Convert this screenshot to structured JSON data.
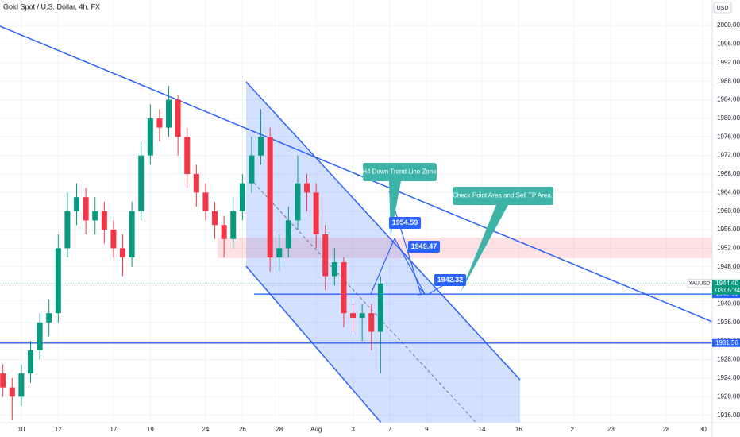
{
  "chart_data": {
    "type": "candlestick",
    "title": "Gold Spot / U.S. Dollar, 4h, FX",
    "currency": "USD",
    "up_color": "#089981",
    "down_color": "#f23645",
    "x": [
      -1,
      -0.5,
      0,
      0.5,
      1,
      1.5,
      2,
      2.5,
      3,
      3.5,
      4,
      4.5,
      5,
      5.5,
      6,
      6.5,
      7,
      7.5,
      8,
      8.5,
      9,
      9.5,
      10,
      10.5,
      11,
      11.5,
      12,
      12.5,
      13,
      13.5,
      14,
      14.5,
      15,
      15.5,
      16,
      16.5,
      17,
      17.5,
      18,
      18.5,
      19,
      19.5
    ],
    "open": [
      1925,
      1922,
      1920,
      1925,
      1930,
      1936,
      1938,
      1952,
      1960,
      1963,
      1958,
      1960,
      1956,
      1952,
      1950,
      1960,
      1972,
      1980,
      1978,
      1984,
      1976,
      1968,
      1964,
      1960,
      1957,
      1954,
      1960,
      1966,
      1972,
      1976,
      1950,
      1952,
      1958,
      1966,
      1964,
      1955,
      1946,
      1949,
      1938,
      1937,
      1938,
      1934
    ],
    "high": [
      1927,
      1924,
      1927,
      1932,
      1938,
      1941,
      1955,
      1964,
      1966,
      1965,
      1963,
      1962,
      1958,
      1955,
      1962,
      1975,
      1983,
      1982,
      1987,
      1985,
      1978,
      1970,
      1966,
      1962,
      1959,
      1963,
      1968,
      1976,
      1982,
      1978,
      1955,
      1961,
      1972,
      1968,
      1966,
      1957,
      1952,
      1950,
      1940,
      1940,
      1940,
      1946
    ],
    "low": [
      1920,
      1915,
      1918,
      1923,
      1928,
      1933,
      1936,
      1950,
      1957,
      1955,
      1955,
      1953,
      1950,
      1946,
      1948,
      1958,
      1970,
      1975,
      1976,
      1972,
      1965,
      1961,
      1958,
      1954,
      1950,
      1952,
      1958,
      1964,
      1970,
      1947,
      1947,
      1950,
      1956,
      1960,
      1952,
      1943,
      1944,
      1935,
      1934,
      1932,
      1930,
      1925
    ],
    "close": [
      1922,
      1920,
      1925,
      1930,
      1936,
      1938,
      1952,
      1960,
      1963,
      1958,
      1960,
      1956,
      1952,
      1950,
      1960,
      1972,
      1980,
      1978,
      1984,
      1976,
      1968,
      1964,
      1960,
      1957,
      1954,
      1960,
      1966,
      1972,
      1976,
      1950,
      1952,
      1958,
      1966,
      1964,
      1955,
      1946,
      1949,
      1938,
      1937,
      1938,
      1934,
      1944.4
    ],
    "xlim": [
      -1.16,
      37.5
    ],
    "xticks": [
      {
        "value": 0,
        "label": "10"
      },
      {
        "value": 2,
        "label": "12"
      },
      {
        "value": 5,
        "label": "17"
      },
      {
        "value": 7,
        "label": "19"
      },
      {
        "value": 10,
        "label": "24"
      },
      {
        "value": 12,
        "label": "26"
      },
      {
        "value": 14,
        "label": "28"
      },
      {
        "value": 16,
        "label": "Aug"
      },
      {
        "value": 18,
        "label": "3"
      },
      {
        "value": 20,
        "label": "7"
      },
      {
        "value": 22,
        "label": "9"
      },
      {
        "value": 25,
        "label": "14"
      },
      {
        "value": 27,
        "label": "16"
      },
      {
        "value": 30,
        "label": "21"
      },
      {
        "value": 32,
        "label": "23"
      },
      {
        "value": 35,
        "label": "28"
      },
      {
        "value": 37,
        "label": "30"
      }
    ],
    "ylim": [
      1914.4,
      2005.5
    ],
    "yticks": [
      {
        "value": 1916,
        "label": "1916.00"
      },
      {
        "value": 1920,
        "label": "1920.00"
      },
      {
        "value": 1924,
        "label": "1924.00"
      },
      {
        "value": 1928,
        "label": "1928.00"
      },
      {
        "value": 1932,
        "label": "1932.00"
      },
      {
        "value": 1936,
        "label": "1936.00"
      },
      {
        "value": 1940,
        "label": "1940.00"
      },
      {
        "value": 1944,
        "label": "1944.00"
      },
      {
        "value": 1948,
        "label": "1948.00"
      },
      {
        "value": 1952,
        "label": "1952.00"
      },
      {
        "value": 1956,
        "label": "1956.00"
      },
      {
        "value": 1960,
        "label": "1960.00"
      },
      {
        "value": 1964,
        "label": "1964.00"
      },
      {
        "value": 1968,
        "label": "1968.00"
      },
      {
        "value": 1972,
        "label": "1972.00"
      },
      {
        "value": 1976,
        "label": "1976.00"
      },
      {
        "value": 1980,
        "label": "1980.00"
      },
      {
        "value": 1984,
        "label": "1984.00"
      },
      {
        "value": 1988,
        "label": "1988.00"
      },
      {
        "value": 1992,
        "label": "1992.00"
      },
      {
        "value": 1996,
        "label": "1996.00"
      },
      {
        "value": 2000,
        "label": "2000.00"
      }
    ],
    "symbol": "XAUUSD",
    "last_price": {
      "value": 1944.4,
      "label": "1944.40"
    },
    "countdown": "03:05:34",
    "levels": [
      1942.11,
      1931.56
    ],
    "annotations": {
      "zone": "H4 Down Trend Line Zone",
      "checkpoint": "Check Point  Area and Sell  TP Area.",
      "target1": "1954.59",
      "target2": "1949.47",
      "target3": "1942.32"
    }
  }
}
